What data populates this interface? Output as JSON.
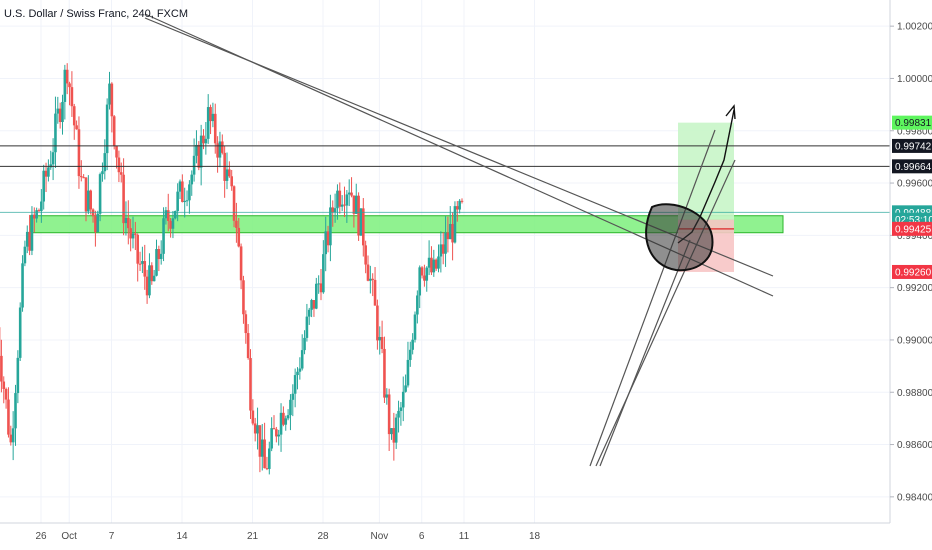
{
  "header": {
    "symbol_title": "U.S. Dollar / Swiss Franc, 240, FXCM"
  },
  "colors": {
    "up": "#26a69a",
    "down": "#ef5350",
    "grid": "#f0f3fa",
    "axis_text": "#4a4a4a",
    "zone_fill": "#7cf07c",
    "zone_stroke": "#2bb52b",
    "profit_fill": "#c8f5c8",
    "loss_fill": "#f7c5c5",
    "trendline": "#555555",
    "circle_fill": "#333333"
  },
  "chart_data": {
    "type": "candlestick",
    "title": "U.S. Dollar / Swiss Franc, 240, FXCM",
    "ylim": [
      0.983,
      1.003
    ],
    "y_ticks": [
      "1.00200",
      "1.00000",
      "0.99800",
      "0.99600",
      "0.99400",
      "0.99200",
      "0.99000",
      "0.98800",
      "0.98600",
      "0.98400"
    ],
    "x_ticks": [
      "26",
      "Oct",
      "7",
      "14",
      "21",
      "28",
      "Nov",
      "6",
      "11",
      "18"
    ],
    "price_labels": [
      {
        "label": "0.99831",
        "value": 0.99831,
        "style": "green"
      },
      {
        "label": "0.99742",
        "value": 0.99742,
        "style": "black"
      },
      {
        "label": "0.99664",
        "value": 0.99664,
        "style": "black"
      },
      {
        "label": "0.99488",
        "value": 0.99488,
        "style": "teal"
      },
      {
        "label": "02:53:10",
        "value": 0.9946,
        "style": "teal"
      },
      {
        "label": "0.99425",
        "value": 0.99425,
        "style": "red"
      },
      {
        "label": "0.99260",
        "value": 0.9926,
        "style": "red"
      }
    ],
    "support_zone": {
      "low": 0.9941,
      "high": 0.99475
    },
    "horizontal_lines": [
      0.99742,
      0.99664,
      0.99488
    ],
    "position": {
      "target": 0.99831,
      "entry": 0.9946,
      "stop": 0.9926
    },
    "series_trend": [
      {
        "t": "Sep 23",
        "price": 0.9905
      },
      {
        "t": "Sep 24",
        "price": 0.986
      },
      {
        "t": "Sep 26",
        "price": 0.9935
      },
      {
        "t": "Sep 27",
        "price": 0.995
      },
      {
        "t": "Sep 30",
        "price": 0.9975
      },
      {
        "t": "Oct 1",
        "price": 1.0005
      },
      {
        "t": "Oct 2",
        "price": 0.996
      },
      {
        "t": "Oct 3",
        "price": 0.9945
      },
      {
        "t": "Oct 4",
        "price": 0.9995
      },
      {
        "t": "Oct 7",
        "price": 0.995
      },
      {
        "t": "Oct 8",
        "price": 0.993
      },
      {
        "t": "Oct 9",
        "price": 0.992
      },
      {
        "t": "Oct 10",
        "price": 0.9945
      },
      {
        "t": "Oct 11",
        "price": 0.9955
      },
      {
        "t": "Oct 14",
        "price": 0.9965
      },
      {
        "t": "Oct 15",
        "price": 0.9985
      },
      {
        "t": "Oct 16",
        "price": 0.997
      },
      {
        "t": "Oct 17",
        "price": 0.9945
      },
      {
        "t": "Oct 18",
        "price": 0.988
      },
      {
        "t": "Oct 21",
        "price": 0.985
      },
      {
        "t": "Oct 22",
        "price": 0.987
      },
      {
        "t": "Oct 23",
        "price": 0.988
      },
      {
        "t": "Oct 24",
        "price": 0.9905
      },
      {
        "t": "Oct 25",
        "price": 0.9925
      },
      {
        "t": "Oct 28",
        "price": 0.9955
      },
      {
        "t": "Oct 29",
        "price": 0.996
      },
      {
        "t": "Oct 30",
        "price": 0.994
      },
      {
        "t": "Oct 31",
        "price": 0.9905
      },
      {
        "t": "Nov 1",
        "price": 0.986
      },
      {
        "t": "Nov 4",
        "price": 0.988
      },
      {
        "t": "Nov 5",
        "price": 0.993
      },
      {
        "t": "Nov 6",
        "price": 0.9925
      },
      {
        "t": "Nov 7",
        "price": 0.994
      },
      {
        "t": "Nov 8",
        "price": 0.99488
      }
    ]
  }
}
